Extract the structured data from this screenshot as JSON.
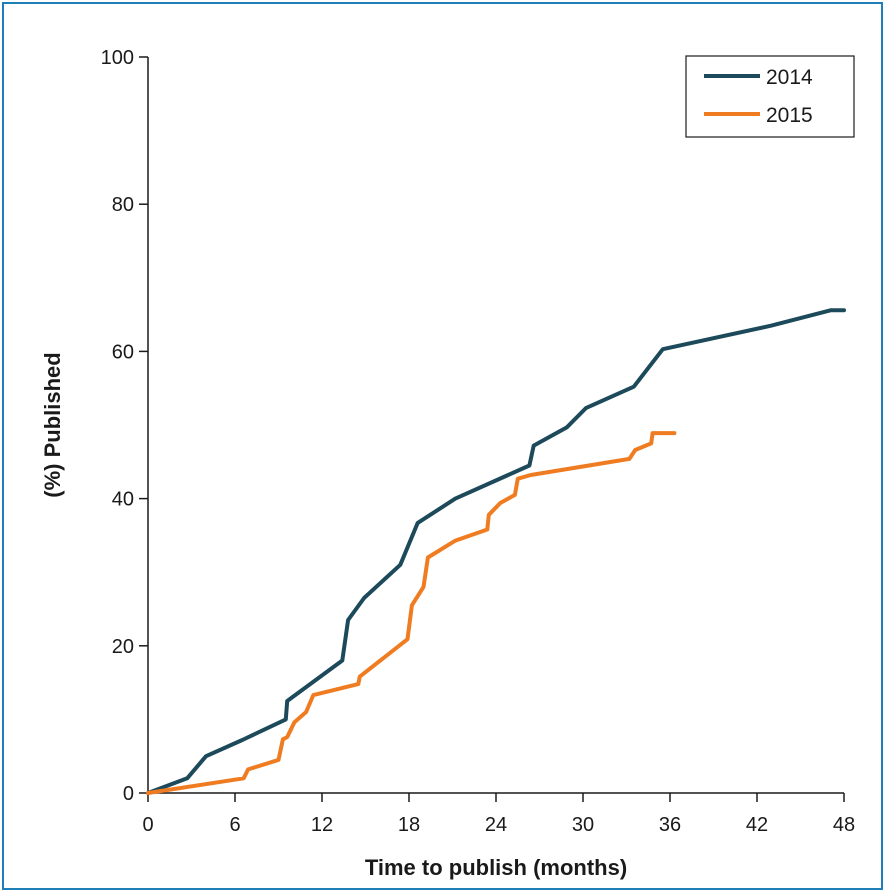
{
  "chart_data": {
    "type": "line",
    "xlabel": "Time to publish (months)",
    "ylabel": "(%) Published",
    "xlim": [
      0,
      48
    ],
    "ylim": [
      0,
      100
    ],
    "x_ticks": [
      0,
      6,
      12,
      18,
      24,
      30,
      36,
      42,
      48
    ],
    "y_ticks": [
      0,
      20,
      40,
      60,
      80,
      100
    ],
    "grid": false,
    "legend_position": "top-right",
    "series": [
      {
        "name": "2014",
        "color": "#1d4a5a",
        "points": [
          [
            0,
            0
          ],
          [
            2.7,
            2
          ],
          [
            4,
            5
          ],
          [
            6.5,
            7.2
          ],
          [
            9.5,
            10
          ],
          [
            9.6,
            12.5
          ],
          [
            13.4,
            18
          ],
          [
            13.8,
            23.5
          ],
          [
            14.9,
            26.5
          ],
          [
            17.4,
            31
          ],
          [
            18.6,
            36.7
          ],
          [
            21.2,
            40
          ],
          [
            26.3,
            44.5
          ],
          [
            26.6,
            47.2
          ],
          [
            28.9,
            49.7
          ],
          [
            30.2,
            52.3
          ],
          [
            33.5,
            55.2
          ],
          [
            35.5,
            60.3
          ],
          [
            43,
            63.5
          ],
          [
            47.1,
            65.6
          ],
          [
            48,
            65.6
          ]
        ]
      },
      {
        "name": "2015",
        "color": "#f07c22",
        "points": [
          [
            0,
            0
          ],
          [
            6.6,
            2
          ],
          [
            6.9,
            3.2
          ],
          [
            9,
            4.5
          ],
          [
            9.3,
            7.3
          ],
          [
            9.6,
            7.6
          ],
          [
            10.1,
            9.6
          ],
          [
            10.9,
            11
          ],
          [
            11.4,
            13.3
          ],
          [
            14.5,
            14.8
          ],
          [
            14.6,
            15.8
          ],
          [
            17.9,
            20.9
          ],
          [
            18.2,
            25.5
          ],
          [
            19,
            28
          ],
          [
            19.3,
            32
          ],
          [
            21.2,
            34.3
          ],
          [
            23.4,
            35.8
          ],
          [
            23.5,
            37.8
          ],
          [
            24.3,
            39.4
          ],
          [
            25.3,
            40.5
          ],
          [
            25.5,
            42.7
          ],
          [
            26.4,
            43.2
          ],
          [
            33.2,
            45.4
          ],
          [
            33.6,
            46.6
          ],
          [
            34.7,
            47.5
          ],
          [
            34.8,
            48.9
          ],
          [
            36.3,
            48.9
          ]
        ]
      }
    ]
  }
}
